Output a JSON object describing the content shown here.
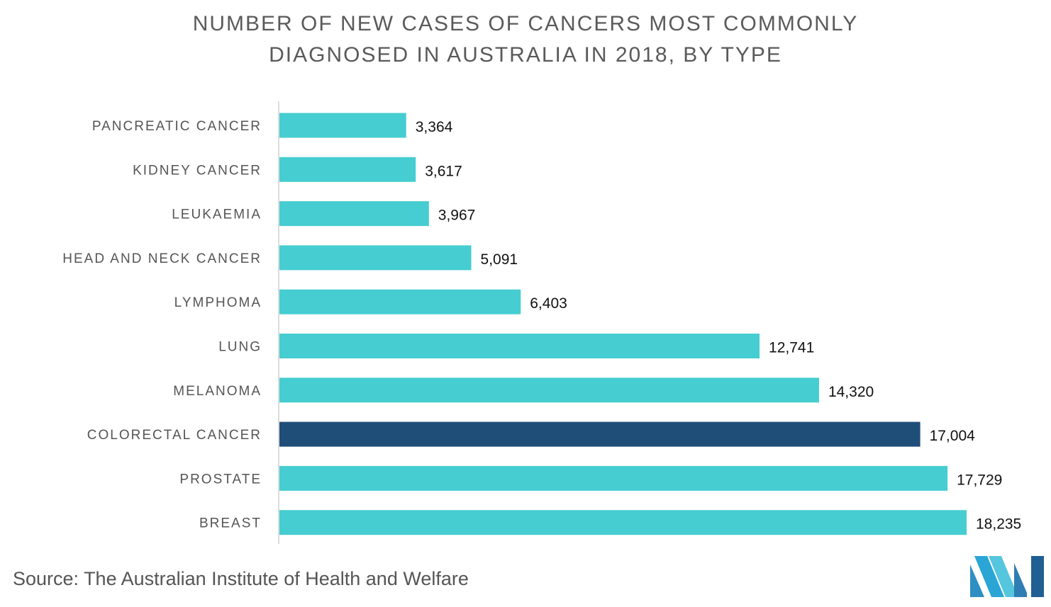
{
  "chart_data": {
    "type": "bar",
    "orientation": "horizontal",
    "title_lines": [
      "NUMBER OF NEW CASES OF CANCERS MOST COMMONLY",
      "DIAGNOSED IN AUSTRALIA IN 2018, BY TYPE"
    ],
    "categories": [
      "PANCREATIC CANCER",
      "KIDNEY CANCER",
      "LEUKAEMIA",
      "HEAD AND NECK CANCER",
      "LYMPHOMA",
      "LUNG",
      "MELANOMA",
      "COLORECTAL CANCER",
      "PROSTATE",
      "BREAST"
    ],
    "values": [
      3364,
      3617,
      3967,
      5091,
      6403,
      12741,
      14320,
      17004,
      17729,
      18235
    ],
    "value_labels": [
      "3,364",
      "3,617",
      "3,967",
      "5,091",
      "6,403",
      "12,741",
      "14,320",
      "17,004",
      "17,729",
      "18,235"
    ],
    "highlight_index": 7,
    "colors": {
      "bar": "#46cdd1",
      "highlight": "#1f4e79",
      "axis": "#d0d0d0",
      "category_text": "#555555",
      "value_text": "#111111"
    },
    "xlim": [
      0,
      18235
    ],
    "grid": false,
    "legend": "none"
  },
  "footer": {
    "source": "Source: The Australian Institute of Health and Welfare"
  }
}
